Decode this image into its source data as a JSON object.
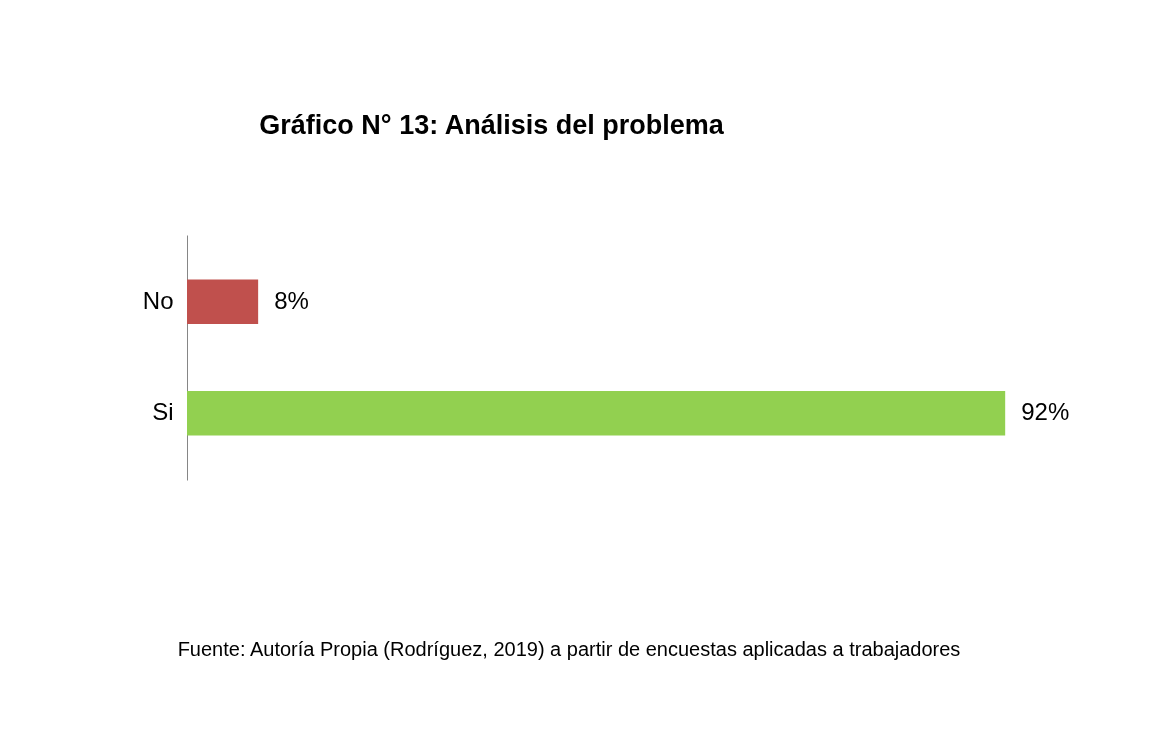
{
  "chart_data": {
    "type": "bar",
    "orientation": "horizontal",
    "title": "Gráfico N° 13: Análisis del problema",
    "categories": [
      "No",
      "Si"
    ],
    "values": [
      8,
      92
    ],
    "value_labels": [
      "8%",
      "92%"
    ],
    "colors": [
      "#c0504d",
      "#92d050"
    ],
    "grid": false,
    "tick_labels": "y",
    "annotations": [
      "Fuente: Autoría Propia (Rodríguez, 2019) a partir de encuestas aplicadas a trabajadores"
    ]
  }
}
